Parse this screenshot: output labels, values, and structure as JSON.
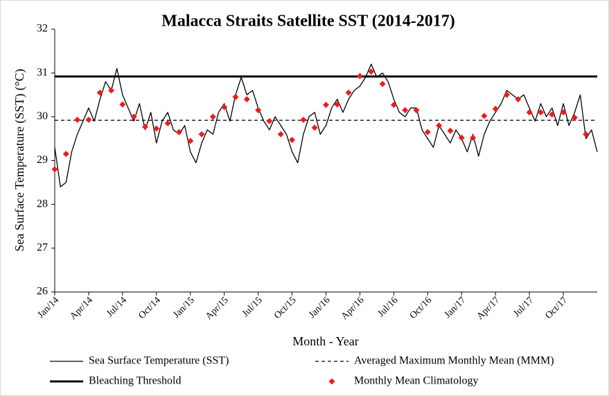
{
  "chart_data": {
    "type": "line",
    "title": "Malacca Straits Satellite SST (2014-2017)",
    "xlabel": "Month - Year",
    "ylabel": "Sea Surface Temperature (SST) (°C)",
    "xlim": [
      0,
      48
    ],
    "xticks": [
      {
        "value": 0,
        "label": "Jan/14"
      },
      {
        "value": 3,
        "label": "Apr/14"
      },
      {
        "value": 6,
        "label": "Jul/14"
      },
      {
        "value": 9,
        "label": "Oct/14"
      },
      {
        "value": 12,
        "label": "Jan/15"
      },
      {
        "value": 15,
        "label": "Apr/15"
      },
      {
        "value": 18,
        "label": "Jul/15"
      },
      {
        "value": 21,
        "label": "Oct/15"
      },
      {
        "value": 24,
        "label": "Jan/16"
      },
      {
        "value": 27,
        "label": "Apr/16"
      },
      {
        "value": 30,
        "label": "Jul/16"
      },
      {
        "value": 33,
        "label": "Oct/16"
      },
      {
        "value": 36,
        "label": "Jan/17"
      },
      {
        "value": 39,
        "label": "Apr/17"
      },
      {
        "value": 42,
        "label": "Jul/17"
      },
      {
        "value": 45,
        "label": "Oct/17"
      }
    ],
    "ylim": [
      26,
      32
    ],
    "yticks": [
      26,
      27,
      28,
      29,
      30,
      31,
      32
    ],
    "x": [
      0,
      0.5,
      1,
      1.5,
      2,
      2.5,
      3,
      3.5,
      4,
      4.5,
      5,
      5.5,
      6,
      6.5,
      7,
      7.5,
      8,
      8.5,
      9,
      9.5,
      10,
      10.5,
      11,
      11.5,
      12,
      12.5,
      13,
      13.5,
      14,
      14.5,
      15,
      15.5,
      16,
      16.5,
      17,
      17.5,
      18,
      18.5,
      19,
      19.5,
      20,
      20.5,
      21,
      21.5,
      22,
      22.5,
      23,
      23.5,
      24,
      24.5,
      25,
      25.5,
      26,
      26.5,
      27,
      27.5,
      28,
      28.5,
      29,
      29.5,
      30,
      30.5,
      31,
      31.5,
      32,
      32.5,
      33,
      33.5,
      34,
      34.5,
      35,
      35.5,
      36,
      36.5,
      37,
      37.5,
      38,
      38.5,
      39,
      39.5,
      40,
      40.5,
      41,
      41.5,
      42,
      42.5,
      43,
      43.5,
      44,
      44.5,
      45,
      45.5,
      46,
      46.5,
      47,
      47.5,
      48
    ],
    "series": [
      {
        "name": "Sea Surface Temperature (SST)",
        "style": "line",
        "color": "#000000",
        "values": [
          29.3,
          28.4,
          28.5,
          29.2,
          29.6,
          29.9,
          30.2,
          29.9,
          30.4,
          30.8,
          30.6,
          31.1,
          30.5,
          30.2,
          29.9,
          30.3,
          29.7,
          30.1,
          29.4,
          29.9,
          30.1,
          29.7,
          29.6,
          29.8,
          29.2,
          28.95,
          29.4,
          29.7,
          29.6,
          30.1,
          30.3,
          29.9,
          30.5,
          30.9,
          30.5,
          30.6,
          30.2,
          29.9,
          29.7,
          30.0,
          29.8,
          29.6,
          29.2,
          28.95,
          29.6,
          30.0,
          30.1,
          29.6,
          29.8,
          30.2,
          30.4,
          30.1,
          30.4,
          30.6,
          30.7,
          30.9,
          31.2,
          30.9,
          31.0,
          30.8,
          30.4,
          30.1,
          30.0,
          30.2,
          30.2,
          29.7,
          29.5,
          29.3,
          29.8,
          29.6,
          29.4,
          29.7,
          29.5,
          29.2,
          29.6,
          29.1,
          29.6,
          29.9,
          30.1,
          30.3,
          30.6,
          30.5,
          30.4,
          30.5,
          30.2,
          29.9,
          30.3,
          30.0,
          30.2,
          29.8,
          30.3,
          29.8,
          30.1,
          30.5,
          29.5,
          29.7,
          29.2
        ]
      },
      {
        "name": "Averaged Maximum Monthly Mean (MMM)",
        "style": "dashed",
        "color": "#000000",
        "value": 29.92
      },
      {
        "name": "Bleaching Threshold",
        "style": "thick",
        "color": "#000000",
        "value": 30.92
      },
      {
        "name": "Monthly Mean Climatology",
        "style": "marker",
        "color": "#ee1c1c",
        "x": [
          0,
          1,
          2,
          3,
          4,
          5,
          6,
          7,
          8,
          9,
          10,
          11,
          12,
          13,
          14,
          15,
          16,
          17,
          18,
          19,
          20,
          21,
          22,
          23,
          24,
          25,
          26,
          27,
          28,
          29,
          30,
          31,
          32,
          33,
          34,
          35,
          36,
          37,
          38,
          39,
          40,
          41,
          42,
          43,
          44,
          45,
          46,
          47
        ],
        "values": [
          28.8,
          29.15,
          29.93,
          29.93,
          30.55,
          30.6,
          30.28,
          30.0,
          29.77,
          29.73,
          29.85,
          29.65,
          29.45,
          29.6,
          30.0,
          30.22,
          30.45,
          30.4,
          30.15,
          29.9,
          29.6,
          29.47,
          29.93,
          29.75,
          30.27,
          30.28,
          30.55,
          30.93,
          31.03,
          30.75,
          30.27,
          30.15,
          30.15,
          29.65,
          29.8,
          29.68,
          29.52,
          29.52,
          30.02,
          30.18,
          30.5,
          30.4,
          30.1,
          30.1,
          30.05,
          30.1,
          29.98,
          29.6
        ]
      }
    ]
  }
}
